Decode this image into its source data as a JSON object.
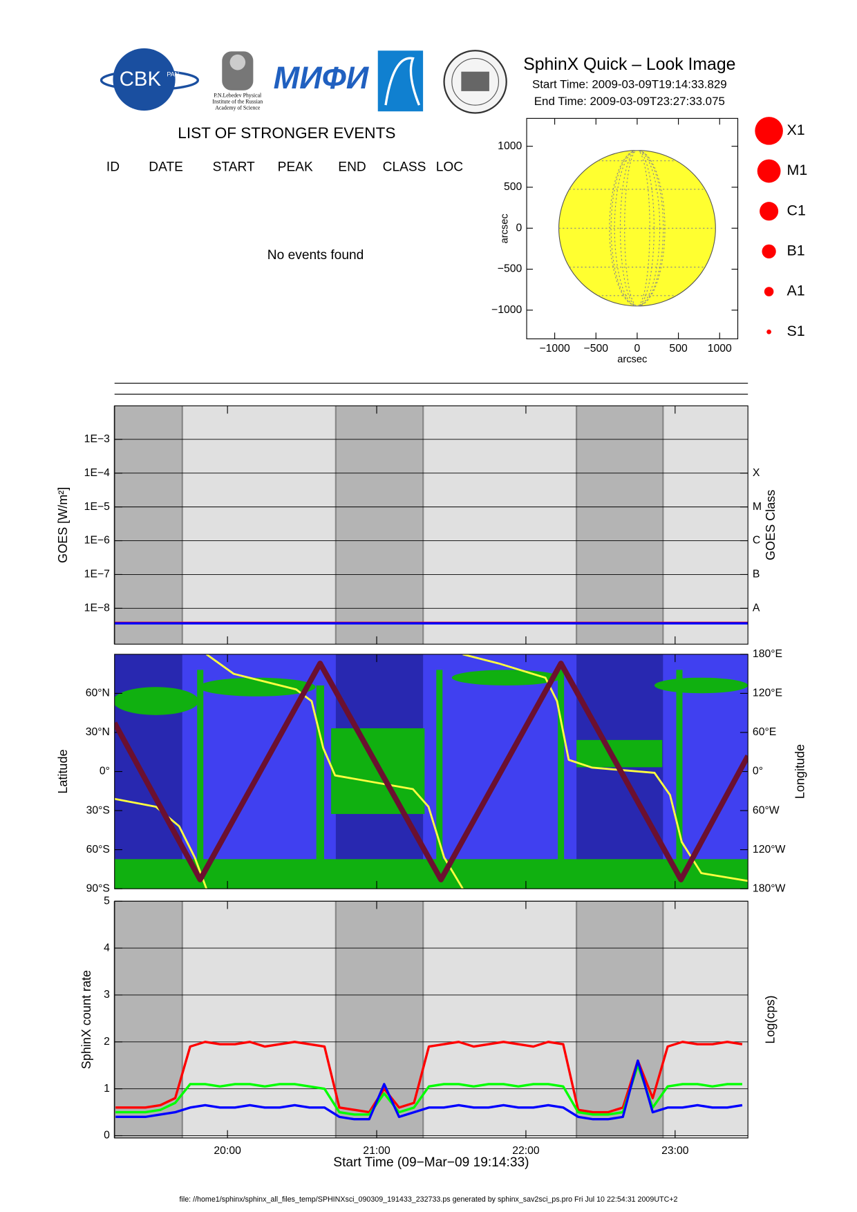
{
  "header": {
    "title": "SphinX Quick – Look Image",
    "start_time": "Start Time: 2009-03-09T19:14:33.829",
    "end_time": "End Time: 2009-03-09T23:27:33.075",
    "logos": {
      "cbk": "CBK",
      "cbk_sub": "PAN",
      "lebedev": [
        "P.N.Lebedev Physical",
        "Institute of the Russian",
        "Academy of Science"
      ],
      "mifi": "МИФИ"
    }
  },
  "events": {
    "title": "LIST OF STRONGER EVENTS",
    "columns": [
      "ID",
      "DATE",
      "START",
      "PEAK",
      "END",
      "CLASS",
      "LOC"
    ],
    "message": "No events found"
  },
  "size_legend": [
    "X1",
    "M1",
    "C1",
    "B1",
    "A1",
    "S1"
  ],
  "footer": "file: //home1/sphinx/sphinx_all_files_temp/SPHINXsci_090309_191433_232733.ps generated by sphinx_sav2sci_ps.pro Fri Jul 10 22:54:31 2009UTC+2",
  "chart_data": [
    {
      "type": "disk",
      "xlabel": "arcsec",
      "ylabel": "arcsec",
      "xlim": [
        -1340,
        1220
      ],
      "ylim": [
        -1350,
        1340
      ],
      "xticks": [
        {
          "value": -1000,
          "label": "−1000"
        },
        {
          "value": -500,
          "label": "−500"
        },
        0,
        500,
        1000
      ],
      "yticks": [
        {
          "value": -1000,
          "label": "−1000"
        },
        {
          "value": -500,
          "label": "−500"
        },
        0,
        500,
        1000
      ],
      "disk_center": [
        0,
        0
      ],
      "disk_radius": 950,
      "color": "#ffff30"
    },
    {
      "type": "line",
      "ylabel": "GOES [W/m²]",
      "y2label": "GOES Class",
      "log": true,
      "grid": true,
      "background": "#e0e0e0",
      "shade_color": "#b4b4b4",
      "shaded": [
        [
          19.243,
          19.697
        ],
        [
          20.726,
          21.311
        ],
        [
          22.339,
          22.919
        ]
      ],
      "xlim": [
        19.243,
        23.488
      ],
      "ylim": [
        8.7e-10,
        0.0098
      ],
      "yticks": [
        {
          "value": 1e-08,
          "label": "1E−8"
        },
        {
          "value": 1e-07,
          "label": "1E−7"
        },
        {
          "value": 1e-06,
          "label": "1E−6"
        },
        {
          "value": 1e-05,
          "label": "1E−5"
        },
        {
          "value": 0.0001,
          "label": "1E−4"
        },
        {
          "value": 0.001,
          "label": "1E−3"
        }
      ],
      "y2lim": [
        8.7e-10,
        0.0098
      ],
      "y2ticks": [
        {
          "value": 1e-08,
          "label": "A"
        },
        {
          "value": 1e-07,
          "label": "B"
        },
        {
          "value": 1e-06,
          "label": "C"
        },
        {
          "value": 1e-05,
          "label": "M"
        },
        {
          "value": 0.0001,
          "label": "X"
        }
      ],
      "series": [
        {
          "color": "#ff0000",
          "x": [
            19.243,
            20,
            21,
            22,
            23,
            23.488
          ],
          "values": [
            3.7e-09,
            3.7e-09,
            3.7e-09,
            3.7e-09,
            3.7e-09,
            3.7e-09
          ]
        },
        {
          "color": "#0000ff",
          "x": [
            19.243,
            20,
            21,
            22,
            23,
            23.488
          ],
          "values": [
            3.6e-09,
            3.6e-09,
            3.6e-09,
            3.6e-09,
            3.6e-09,
            3.6e-09
          ]
        }
      ]
    },
    {
      "type": "line",
      "ylabel": "Latitude",
      "y2label": "Longitude",
      "background": "#4040f0",
      "shade_color": "#2828b0",
      "shaded": [
        [
          19.243,
          19.697
        ],
        [
          20.726,
          21.311
        ],
        [
          22.339,
          22.919
        ]
      ],
      "xlim": [
        19.243,
        23.488
      ],
      "ylim": [
        -90,
        90
      ],
      "yticks": [
        {
          "value": -90,
          "label": "90°S"
        },
        {
          "value": -60,
          "label": "60°S"
        },
        {
          "value": -30,
          "label": "30°S"
        },
        {
          "value": 0,
          "label": "0°"
        },
        {
          "value": 30,
          "label": "30°N"
        },
        {
          "value": 60,
          "label": "60°N"
        }
      ],
      "y2lim": [
        -180,
        180
      ],
      "y2ticks": [
        {
          "value": -180,
          "label": "180°W"
        },
        {
          "value": -120,
          "label": "120°W"
        },
        {
          "value": -60,
          "label": "60°W"
        },
        {
          "value": 0,
          "label": "0°"
        },
        {
          "value": 60,
          "label": "60°E"
        },
        {
          "value": 120,
          "label": "120°E"
        },
        {
          "value": 180,
          "label": "180°E"
        }
      ],
      "series": [
        {
          "color": "#ffff40",
          "axis": "y2",
          "x": [
            19.243,
            19.52,
            19.676,
            19.781,
            19.859,
            19.859,
            19.859,
            20.042,
            20.46,
            20.564,
            20.642,
            20.721,
            21.243,
            21.347,
            21.452,
            21.577,
            21.577,
            21.577,
            21.817,
            22.131,
            22.209,
            22.287,
            22.444,
            22.862,
            22.966,
            23.044,
            23.175,
            23.488
          ],
          "values": [
            -42,
            -54,
            -84,
            -132,
            -180,
            null,
            180,
            150,
            126,
            108,
            36,
            -6,
            -27,
            -54,
            -132,
            -180,
            null,
            180,
            166,
            144,
            108,
            18,
            6,
            -2,
            -36,
            -108,
            -156,
            -168
          ]
        },
        {
          "color": "#6b1030",
          "x": [
            19.243,
            19.817,
            20.621,
            21.431,
            22.235,
            23.039,
            23.488
          ],
          "values": [
            37.4,
            -83,
            83,
            -83,
            83,
            -83,
            12
          ]
        }
      ]
    },
    {
      "type": "line",
      "ylabel": "SphinX count rate",
      "y2label": "Log(cps)",
      "xlabel": "Start Time (09−Mar−09 19:14:33)",
      "grid": true,
      "background": "#e0e0e0",
      "shade_color": "#b4b4b4",
      "shaded": [
        [
          19.243,
          19.697
        ],
        [
          20.726,
          21.311
        ],
        [
          22.339,
          22.919
        ]
      ],
      "xlim": [
        19.243,
        23.488
      ],
      "ylim": [
        -0.05,
        5
      ],
      "xticks": [
        {
          "value": 20,
          "label": "20:00"
        },
        {
          "value": 21,
          "label": "21:00"
        },
        {
          "value": 22,
          "label": "22:00"
        },
        {
          "value": 23,
          "label": "23:00"
        }
      ],
      "yticks": [
        0,
        1,
        2,
        3,
        4,
        5
      ],
      "series": [
        {
          "color": "#ff0000",
          "x": [
            19.25,
            19.35,
            19.45,
            19.55,
            19.65,
            19.75,
            19.85,
            19.95,
            20.05,
            20.15,
            20.25,
            20.35,
            20.45,
            20.55,
            20.65,
            20.75,
            20.85,
            20.95,
            21.05,
            21.15,
            21.25,
            21.35,
            21.45,
            21.55,
            21.65,
            21.75,
            21.85,
            21.95,
            22.05,
            22.15,
            22.25,
            22.35,
            22.45,
            22.55,
            22.65,
            22.75,
            22.85,
            22.95,
            23.05,
            23.15,
            23.25,
            23.35,
            23.45
          ],
          "values": [
            0.6,
            0.6,
            0.6,
            0.65,
            0.8,
            1.9,
            2.0,
            1.95,
            1.95,
            2.0,
            1.9,
            1.95,
            2.0,
            1.95,
            1.9,
            0.6,
            0.55,
            0.5,
            1.0,
            0.6,
            0.7,
            1.9,
            1.95,
            2.0,
            1.9,
            1.95,
            2.0,
            1.95,
            1.9,
            2.0,
            1.95,
            0.55,
            0.5,
            0.5,
            0.6,
            1.6,
            0.8,
            1.9,
            2.0,
            1.95,
            1.95,
            2.0,
            1.95
          ]
        },
        {
          "color": "#00ff00",
          "x": [
            19.25,
            19.35,
            19.45,
            19.55,
            19.65,
            19.75,
            19.85,
            19.95,
            20.05,
            20.15,
            20.25,
            20.35,
            20.45,
            20.55,
            20.65,
            20.75,
            20.85,
            20.95,
            21.05,
            21.15,
            21.25,
            21.35,
            21.45,
            21.55,
            21.65,
            21.75,
            21.85,
            21.95,
            22.05,
            22.15,
            22.25,
            22.35,
            22.45,
            22.55,
            22.65,
            22.75,
            22.85,
            22.95,
            23.05,
            23.15,
            23.25,
            23.35,
            23.45
          ],
          "values": [
            0.5,
            0.5,
            0.5,
            0.55,
            0.7,
            1.1,
            1.1,
            1.05,
            1.1,
            1.1,
            1.05,
            1.1,
            1.1,
            1.05,
            1.0,
            0.5,
            0.45,
            0.45,
            0.9,
            0.5,
            0.6,
            1.05,
            1.1,
            1.1,
            1.05,
            1.1,
            1.1,
            1.05,
            1.1,
            1.1,
            1.05,
            0.5,
            0.45,
            0.45,
            0.5,
            1.5,
            0.6,
            1.05,
            1.1,
            1.1,
            1.05,
            1.1,
            1.1
          ]
        },
        {
          "color": "#0000ff",
          "x": [
            19.25,
            19.35,
            19.45,
            19.55,
            19.65,
            19.75,
            19.85,
            19.95,
            20.05,
            20.15,
            20.25,
            20.35,
            20.45,
            20.55,
            20.65,
            20.75,
            20.85,
            20.95,
            21.05,
            21.15,
            21.25,
            21.35,
            21.45,
            21.55,
            21.65,
            21.75,
            21.85,
            21.95,
            22.05,
            22.15,
            22.25,
            22.35,
            22.45,
            22.55,
            22.65,
            22.75,
            22.85,
            22.95,
            23.05,
            23.15,
            23.25,
            23.35,
            23.45
          ],
          "values": [
            0.4,
            0.4,
            0.4,
            0.45,
            0.5,
            0.6,
            0.65,
            0.6,
            0.6,
            0.65,
            0.6,
            0.6,
            0.65,
            0.6,
            0.6,
            0.4,
            0.35,
            0.35,
            1.1,
            0.4,
            0.5,
            0.6,
            0.6,
            0.65,
            0.6,
            0.6,
            0.65,
            0.6,
            0.6,
            0.65,
            0.6,
            0.4,
            0.35,
            0.35,
            0.4,
            1.6,
            0.5,
            0.6,
            0.6,
            0.65,
            0.6,
            0.6,
            0.65
          ]
        }
      ]
    }
  ]
}
